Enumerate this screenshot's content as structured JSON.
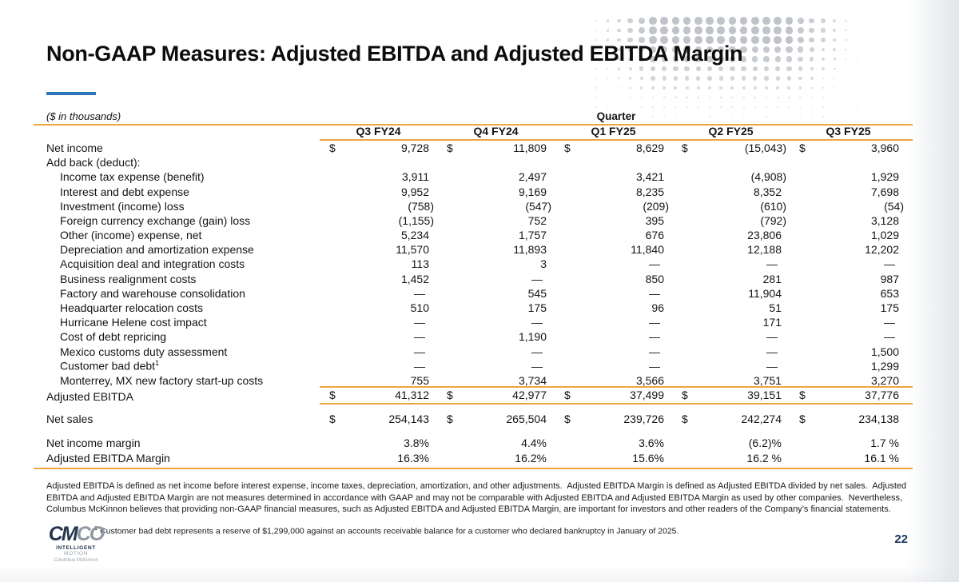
{
  "slide": {
    "title": "Non-GAAP Measures: Adjusted EBITDA and Adjusted EBITDA Margin",
    "units_note": "($ in thousands)",
    "page_number": "22"
  },
  "table": {
    "group_header": "Quarter",
    "currency_symbol": "$",
    "columns": [
      "Q3 FY24",
      "Q4 FY24",
      "Q1 FY25",
      "Q2 FY25",
      "Q3 FY25"
    ],
    "rows": [
      {
        "label": "Net income",
        "dollar": true,
        "values": [
          "9,728",
          "11,809",
          "8,629",
          "(15,043)",
          "3,960"
        ]
      },
      {
        "label": "Add back (deduct):",
        "type": "section",
        "values": null
      },
      {
        "label": "Income tax expense (benefit)",
        "indent": true,
        "values": [
          "3,911",
          "2,497",
          "3,421",
          "(4,908)",
          "1,929"
        ]
      },
      {
        "label": "Interest and debt expense",
        "indent": true,
        "values": [
          "9,952",
          "9,169",
          "8,235",
          "8,352",
          "7,698"
        ]
      },
      {
        "label": "Investment (income) loss",
        "indent": true,
        "values": [
          "(758)",
          "(547)",
          "(209)",
          "(610)",
          "(54)"
        ]
      },
      {
        "label": "Foreign currency exchange (gain) loss",
        "indent": true,
        "values": [
          "(1,155)",
          "752",
          "395",
          "(792)",
          "3,128"
        ]
      },
      {
        "label": "Other (income) expense, net",
        "indent": true,
        "values": [
          "5,234",
          "1,757",
          "676",
          "23,806",
          "1,029"
        ]
      },
      {
        "label": "Depreciation and amortization expense",
        "indent": true,
        "values": [
          "11,570",
          "11,893",
          "11,840",
          "12,188",
          "12,202"
        ]
      },
      {
        "label": "Acquisition deal and integration costs",
        "indent": true,
        "values": [
          "113",
          "3",
          "—",
          "—",
          "—"
        ]
      },
      {
        "label": "Business realignment costs",
        "indent": true,
        "values": [
          "1,452",
          "—",
          "850",
          "281",
          "987"
        ]
      },
      {
        "label": "Factory and warehouse consolidation",
        "indent": true,
        "values": [
          "—",
          "545",
          "—",
          "11,904",
          "653"
        ]
      },
      {
        "label": "Headquarter relocation costs",
        "indent": true,
        "values": [
          "510",
          "175",
          "96",
          "51",
          "175"
        ]
      },
      {
        "label": "Hurricane Helene cost impact",
        "indent": true,
        "values": [
          "—",
          "—",
          "—",
          "171",
          "—"
        ]
      },
      {
        "label": "Cost of debt repricing",
        "indent": true,
        "values": [
          "—",
          "1,190",
          "—",
          "—",
          "—"
        ]
      },
      {
        "label": "Mexico customs duty assessment",
        "indent": true,
        "values": [
          "—",
          "—",
          "—",
          "—",
          "1,500"
        ]
      },
      {
        "label": "Customer bad debt",
        "sup": "1",
        "indent": true,
        "values": [
          "—",
          "—",
          "—",
          "—",
          "1,299"
        ]
      },
      {
        "label": "Monterrey, MX new factory start-up costs",
        "indent": true,
        "values": [
          "755",
          "3,734",
          "3,566",
          "3,751",
          "3,270"
        ]
      },
      {
        "label": "Adjusted EBITDA",
        "dollar": true,
        "type": "total",
        "values": [
          "41,312",
          "42,977",
          "37,499",
          "39,151",
          "37,776"
        ]
      },
      {
        "label": "Net sales",
        "dollar": true,
        "type": "netsales",
        "values": [
          "254,143",
          "265,504",
          "239,726",
          "242,274",
          "234,138"
        ]
      },
      {
        "label": "Net income margin",
        "type": "margin1",
        "values": [
          "3.8%",
          "4.4%",
          "3.6%",
          "(6.2)%",
          "1.7 %"
        ]
      },
      {
        "label": "Adjusted EBITDA Margin",
        "type": "margin2",
        "values": [
          "16.3%",
          "16.2%",
          "15.6%",
          "16.2 %",
          "16.1 %"
        ]
      }
    ]
  },
  "footer": {
    "disclaimer": "Adjusted EBITDA is defined as net income before interest expense, income taxes, depreciation, amortization, and other adjustments.  Adjusted EBITDA Margin is defined as Adjusted EBITDA divided by net sales.  Adjusted EBITDA and Adjusted EBITDA Margin are not measures determined in accordance with GAAP and may not be comparable with Adjusted EBITDA and Adjusted EBITDA Margin as used by other companies.  Nevertheless, Columbus McKinnon believes that providing non-GAAP financial measures, such as Adjusted EBITDA and Adjusted EBITDA Margin, are important for investors and other readers of the Company’s financial statements.",
    "footnote_sup": "1",
    "footnote": " Customer bad debt represents a reserve of $1,299,000 against an accounts receivable balance for a customer who declared bankruptcy in January of 2025."
  },
  "logo": {
    "word_dark": "CM",
    "word_light": "CO",
    "tagline_bold": "INTELLIGENT",
    "tagline_light": " MOTION",
    "subline": "Columbus McKinnon"
  },
  "colors": {
    "accent_blue": "#2E75B6",
    "rule_orange": "#EDA63E",
    "navy": "#17365D"
  }
}
